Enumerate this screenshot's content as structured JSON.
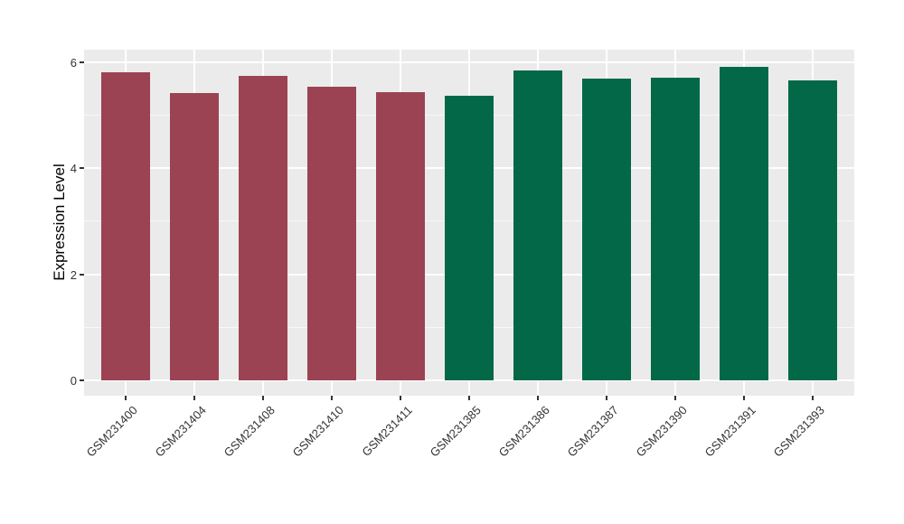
{
  "chart_data": {
    "type": "bar",
    "title": "",
    "xlabel": "",
    "ylabel": "Expression Level",
    "categories": [
      "GSM231400",
      "GSM231404",
      "GSM231408",
      "GSM231410",
      "GSM231411",
      "GSM231385",
      "GSM231386",
      "GSM231387",
      "GSM231390",
      "GSM231391",
      "GSM231393"
    ],
    "values": [
      5.81,
      5.42,
      5.75,
      5.54,
      5.43,
      5.37,
      5.85,
      5.7,
      5.71,
      5.92,
      5.66
    ],
    "bar_colors": [
      "#9B4352",
      "#9B4352",
      "#9B4352",
      "#9B4352",
      "#9B4352",
      "#026847",
      "#026847",
      "#026847",
      "#026847",
      "#026847",
      "#026847"
    ],
    "yticks": [
      0,
      2,
      4,
      6
    ],
    "yminor": [
      1,
      3,
      5
    ],
    "ylim": [
      -0.29,
      6.24
    ],
    "legend": "none",
    "grid": true,
    "panel_bg": "#EBEBEB",
    "grid_color": "#FFFFFF",
    "tick_color": "#333333"
  }
}
